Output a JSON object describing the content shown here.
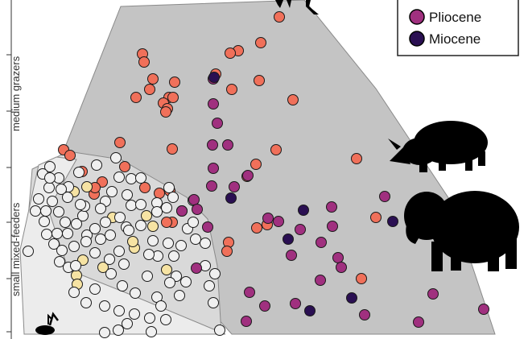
{
  "colors": {
    "background": "#ffffff",
    "hull_outer": "#c4c4c4",
    "hull_outer_stroke": "#8a8a8a",
    "hull_mid": "#d9d9d9",
    "hull_inner": "#ececec",
    "silhouette": "#000000"
  },
  "legend": {
    "entries": [
      {
        "label": "Pliocene",
        "color": "#a0307f"
      },
      {
        "label": "Miocene",
        "color": "#2a0f52"
      }
    ]
  },
  "icons": [
    "rhinoceros-silhouette-icon",
    "elephant-silhouette-icon",
    "antelope-silhouette-icon",
    "animal-silhouette-icon"
  ],
  "chart_data": {
    "type": "scatter",
    "title": "",
    "axis_labels": [
      "medium grazers",
      "small mixed-feeders"
    ],
    "grid": false,
    "legend_position": "top-right",
    "series": [
      {
        "color": "#f0705a",
        "points": [
          [
            347,
            21
          ],
          [
            324,
            53
          ],
          [
            296,
            63
          ],
          [
            286,
            66
          ],
          [
            177,
            67
          ],
          [
            179,
            77
          ],
          [
            190,
            98
          ],
          [
            217,
            102
          ],
          [
            268,
            92
          ],
          [
            322,
            100
          ],
          [
            186,
            111
          ],
          [
            169,
            121
          ],
          [
            210,
            121
          ],
          [
            215,
            121
          ],
          [
            203,
            128
          ],
          [
            208,
            135
          ],
          [
            364,
            124
          ],
          [
            288,
            111
          ],
          [
            206,
            139
          ],
          [
            149,
            177
          ],
          [
            214,
            185
          ],
          [
            79,
            186
          ],
          [
            87,
            193
          ],
          [
            343,
            186
          ],
          [
            318,
            204
          ],
          [
            443,
            197
          ],
          [
            307,
            219
          ],
          [
            102,
            213
          ],
          [
            127,
            226
          ],
          [
            155,
            207
          ],
          [
            180,
            233
          ],
          [
            198,
            240
          ],
          [
            211,
            237
          ],
          [
            117,
            241
          ],
          [
            118,
            233
          ],
          [
            214,
            276
          ],
          [
            332,
            279
          ],
          [
            319,
            283
          ],
          [
            284,
            301
          ],
          [
            282,
            312
          ],
          [
            467,
            270
          ],
          [
            449,
            346
          ],
          [
            207,
            276
          ]
        ]
      },
      {
        "color": "#f6e3a3",
        "points": [
          [
            92,
            238
          ],
          [
            108,
            232
          ],
          [
            140,
            270
          ],
          [
            182,
            268
          ],
          [
            190,
            281
          ],
          [
            167,
            308
          ],
          [
            103,
            323
          ],
          [
            128,
            332
          ],
          [
            95,
            342
          ],
          [
            96,
            353
          ],
          [
            207,
            335
          ],
          [
            165,
            300
          ]
        ]
      },
      {
        "color": "#f0f0f0",
        "points": [
          [
            62,
            207
          ],
          [
            73,
            221
          ],
          [
            85,
            232
          ],
          [
            48,
            247
          ],
          [
            57,
            262
          ],
          [
            44,
            262
          ],
          [
            55,
            275
          ],
          [
            73,
            263
          ],
          [
            81,
            276
          ],
          [
            95,
            278
          ],
          [
            103,
            268
          ],
          [
            84,
            290
          ],
          [
            67,
            303
          ],
          [
            35,
            312
          ],
          [
            74,
            325
          ],
          [
            85,
            332
          ],
          [
            108,
            292
          ],
          [
            125,
            297
          ],
          [
            118,
            314
          ],
          [
            148,
            312
          ],
          [
            154,
            328
          ],
          [
            138,
            340
          ],
          [
            152,
            355
          ],
          [
            168,
            364
          ],
          [
            118,
            359
          ],
          [
            92,
            363
          ],
          [
            107,
            376
          ],
          [
            130,
            380
          ],
          [
            148,
            386
          ],
          [
            167,
            390
          ],
          [
            195,
            369
          ],
          [
            200,
            380
          ],
          [
            186,
            395
          ],
          [
            158,
            402
          ],
          [
            147,
            410
          ],
          [
            130,
            413
          ],
          [
            206,
            397
          ],
          [
            219,
            343
          ],
          [
            231,
            350
          ],
          [
            223,
            367
          ],
          [
            211,
            351
          ],
          [
            183,
            343
          ],
          [
            196,
            318
          ],
          [
            216,
            318
          ],
          [
            209,
            302
          ],
          [
            190,
            299
          ],
          [
            175,
            280
          ],
          [
            157,
            282
          ],
          [
            149,
            270
          ],
          [
            131,
            276
          ],
          [
            118,
            284
          ],
          [
            107,
            300
          ],
          [
            92,
            306
          ],
          [
            77,
            311
          ],
          [
            71,
            290
          ],
          [
            58,
            291
          ],
          [
            65,
            250
          ],
          [
            76,
            235
          ],
          [
            61,
            233
          ],
          [
            139,
            238
          ],
          [
            158,
            242
          ],
          [
            163,
            255
          ],
          [
            175,
            254
          ],
          [
            195,
            252
          ],
          [
            195,
            263
          ],
          [
            207,
            258
          ],
          [
            226,
            262
          ],
          [
            215,
            245
          ],
          [
            240,
            249
          ],
          [
            233,
            284
          ],
          [
            240,
            276
          ],
          [
            255,
            330
          ],
          [
            267,
            340
          ],
          [
            260,
            355
          ],
          [
            265,
            376
          ],
          [
            273,
            410
          ],
          [
            255,
            302
          ],
          [
            243,
            297
          ],
          [
            131,
            250
          ],
          [
            148,
            220
          ],
          [
            120,
            205
          ],
          [
            105,
            256
          ],
          [
            125,
            259
          ],
          [
            137,
            292
          ],
          [
            163,
            222
          ],
          [
            185,
            316
          ],
          [
            225,
            305
          ],
          [
            210,
            233
          ],
          [
            136,
            322
          ],
          [
            98,
            214
          ],
          [
            84,
            245
          ],
          [
            53,
            216
          ],
          [
            188,
            412
          ],
          [
            62,
            221
          ],
          [
            175,
            221
          ],
          [
            144,
            196
          ],
          [
            100,
            254
          ],
          [
            160,
            286
          ],
          [
            94,
            330
          ]
        ]
      },
      {
        "color": "#a0307f",
        "points": [
          [
            265,
            98
          ],
          [
            265,
            129
          ],
          [
            270,
            153
          ],
          [
            264,
            180
          ],
          [
            283,
            180
          ],
          [
            265,
            209
          ],
          [
            308,
            218
          ],
          [
            263,
            231
          ],
          [
            291,
            232
          ],
          [
            241,
            248
          ],
          [
            245,
            260
          ],
          [
            258,
            282
          ],
          [
            346,
            275
          ],
          [
            333,
            271
          ],
          [
            412,
            257
          ],
          [
            373,
            285
          ],
          [
            413,
            281
          ],
          [
            399,
            301
          ],
          [
            362,
            317
          ],
          [
            420,
            320
          ],
          [
            424,
            332
          ],
          [
            398,
            348
          ],
          [
            478,
            244
          ],
          [
            310,
            363
          ],
          [
            329,
            380
          ],
          [
            367,
            377
          ],
          [
            453,
            391
          ],
          [
            538,
            365
          ],
          [
            520,
            400
          ],
          [
            601,
            384
          ],
          [
            306,
            399
          ],
          [
            244,
            333
          ],
          [
            226,
            262
          ]
        ]
      },
      {
        "color": "#2a0f52",
        "points": [
          [
            266,
            96
          ],
          [
            287,
            246
          ],
          [
            377,
            261
          ],
          [
            358,
            297
          ],
          [
            488,
            275
          ],
          [
            385,
            386
          ],
          [
            437,
            370
          ]
        ]
      }
    ]
  }
}
